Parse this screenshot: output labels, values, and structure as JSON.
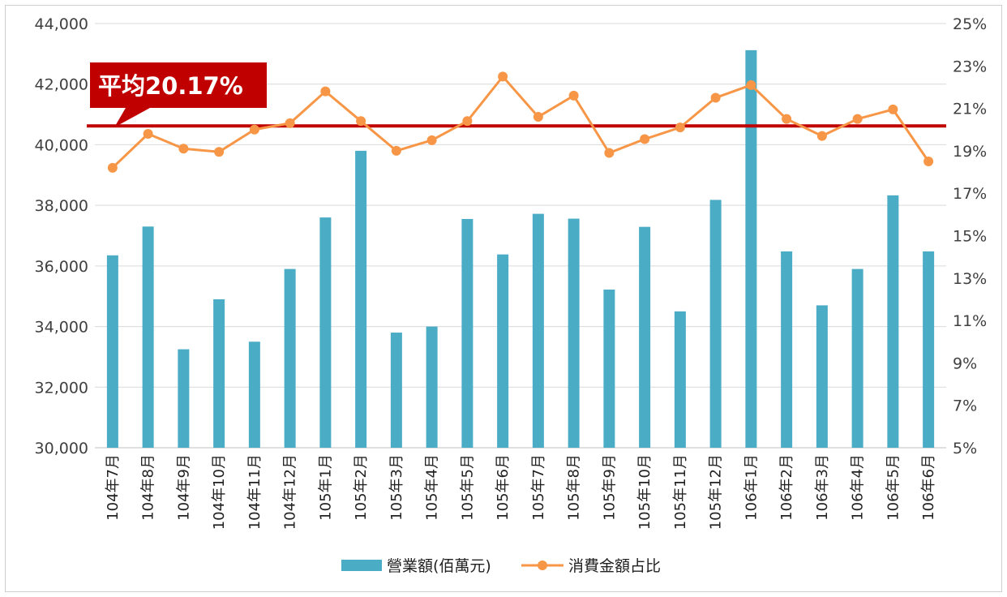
{
  "chart_data": {
    "type": "bar",
    "categories": [
      "104年7月",
      "104年8月",
      "104年9月",
      "104年10月",
      "104年11月",
      "104年12月",
      "105年1月",
      "105年2月",
      "105年3月",
      "105年4月",
      "105年5月",
      "105年6月",
      "105年7月",
      "105年8月",
      "105年9月",
      "105年10月",
      "105年11月",
      "105年12月",
      "106年1月",
      "106年2月",
      "106年3月",
      "106年4月",
      "106年5月",
      "106年6月"
    ],
    "series": [
      {
        "name": "營業額(佰萬元)",
        "type": "bar",
        "axis": "left",
        "color": "#4bacc6",
        "values": [
          36350,
          37300,
          33250,
          34900,
          33500,
          35900,
          37600,
          39800,
          33800,
          34000,
          37550,
          36380,
          37720,
          37560,
          35220,
          37290,
          34500,
          38180,
          43120,
          36480,
          34700,
          35900,
          38330,
          36480
        ]
      },
      {
        "name": "消費金額占比",
        "type": "line",
        "axis": "right",
        "color": "#f79646",
        "values": [
          18.2,
          19.8,
          19.1,
          18.95,
          20.0,
          20.3,
          21.8,
          20.4,
          19.0,
          19.5,
          20.4,
          22.5,
          20.6,
          21.6,
          18.9,
          19.55,
          20.1,
          21.5,
          22.1,
          20.5,
          19.7,
          20.5,
          20.95,
          18.5
        ]
      }
    ],
    "y_left": {
      "min": 30000,
      "max": 44000,
      "step": 2000,
      "tick_labels": [
        "30,000",
        "32,000",
        "34,000",
        "36,000",
        "38,000",
        "40,000",
        "42,000",
        "44,000"
      ]
    },
    "y_right": {
      "min": 5,
      "max": 25,
      "step": 2,
      "tick_labels": [
        "5%",
        "7%",
        "9%",
        "11%",
        "13%",
        "15%",
        "17%",
        "19%",
        "21%",
        "23%",
        "25%"
      ]
    },
    "average_line": {
      "value": 20.17,
      "label": "平均20.17%",
      "color": "#c00000"
    },
    "legend": {
      "position": "bottom"
    },
    "grid": true
  }
}
